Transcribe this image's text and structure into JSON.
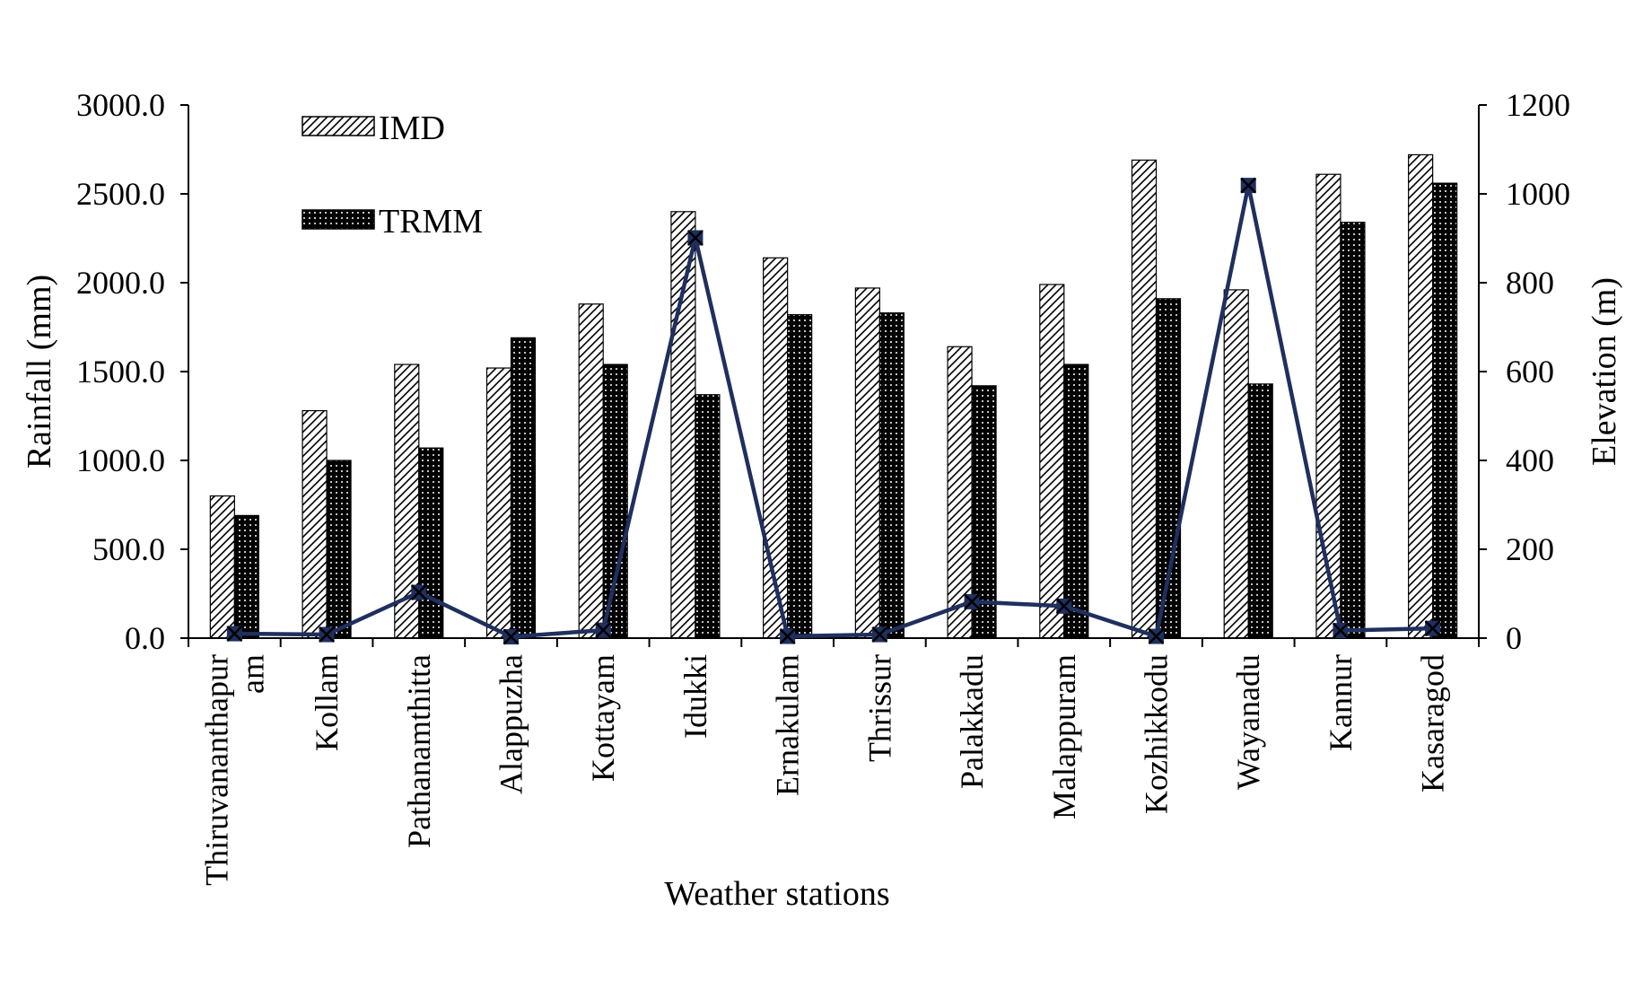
{
  "chart_data": {
    "type": "bar",
    "categories": [
      "Thiruvananthapuram",
      "Kollam",
      "Pathanamthitta",
      "Alappuzha",
      "Kottayam",
      "Idukki",
      "Ernakulam",
      "Thrissur",
      "Palakkadu",
      "Malappuram",
      "Kozhikkodu",
      "Wayanadu",
      "Kannur",
      "Kasaragod"
    ],
    "category_display": [
      [
        "Thiruvananthapur",
        "am"
      ],
      [
        "Kollam"
      ],
      [
        "Pathanamthitta"
      ],
      [
        "Alappuzha"
      ],
      [
        "Kottayam"
      ],
      [
        "Idukki"
      ],
      [
        "Ernakulam"
      ],
      [
        "Thrissur"
      ],
      [
        "Palakkadu"
      ],
      [
        "Malappuram"
      ],
      [
        "Kozhikkodu"
      ],
      [
        "Wayanadu"
      ],
      [
        "Kannur"
      ],
      [
        "Kasaragod"
      ]
    ],
    "series": [
      {
        "name": "IMD",
        "type": "bar",
        "axis": "left",
        "pattern": "diagonal-hatch",
        "values": [
          800,
          1280,
          1540,
          1520,
          1880,
          2400,
          2140,
          1970,
          1640,
          1990,
          2690,
          1960,
          2610,
          2720
        ]
      },
      {
        "name": "TRMM",
        "type": "bar",
        "axis": "left",
        "pattern": "dotted-dark",
        "values": [
          690,
          1000,
          1070,
          1690,
          1540,
          1370,
          1820,
          1830,
          1420,
          1540,
          1910,
          1430,
          2340,
          2560
        ]
      },
      {
        "type": "line",
        "axis": "right",
        "color": "#1f2f5e",
        "marker": "square-x",
        "values": [
          10,
          8,
          103,
          3,
          18,
          901,
          4,
          8,
          82,
          72,
          4,
          1019,
          17,
          22
        ]
      }
    ],
    "xlabel": "Weather stations",
    "ylabel": "Rainfall (mm)",
    "y2label": "Elevation (m)",
    "ylim": [
      0,
      3000
    ],
    "y2lim": [
      0,
      1200
    ],
    "yticks": [
      "0.0",
      "500.0",
      "1000.0",
      "1500.0",
      "2000.0",
      "2500.0",
      "3000.0"
    ],
    "y2ticks": [
      "0",
      "200",
      "400",
      "600",
      "800",
      "1000",
      "1200"
    ],
    "legend": {
      "position": "top-left",
      "entries": [
        "IMD",
        "TRMM"
      ]
    },
    "grid": false
  }
}
